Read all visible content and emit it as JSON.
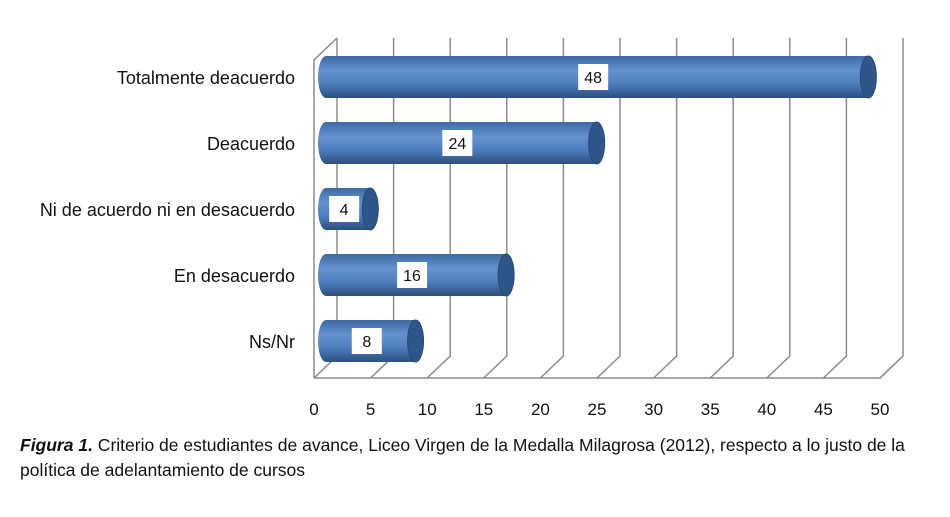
{
  "chart_data": {
    "type": "bar",
    "orientation": "horizontal",
    "style": "3d-cylinder",
    "categories": [
      "Totalmente deacuerdo",
      "Deacuerdo",
      "Ni de acuerdo ni en desacuerdo",
      "En desacuerdo",
      "Ns/Nr"
    ],
    "values": [
      48,
      24,
      4,
      16,
      8
    ],
    "xlim": [
      0,
      50
    ],
    "xticks": [
      0,
      5,
      10,
      15,
      20,
      25,
      30,
      35,
      40,
      45,
      50
    ],
    "grid": true,
    "bar_color": "#4F81BD",
    "data_labels": true
  },
  "caption": {
    "label": "Figura 1.",
    "text": " Criterio de estudiantes de avance, Liceo Virgen de la Medalla Milagrosa (2012), respecto a lo justo de la política de adelantamiento de cursos"
  }
}
